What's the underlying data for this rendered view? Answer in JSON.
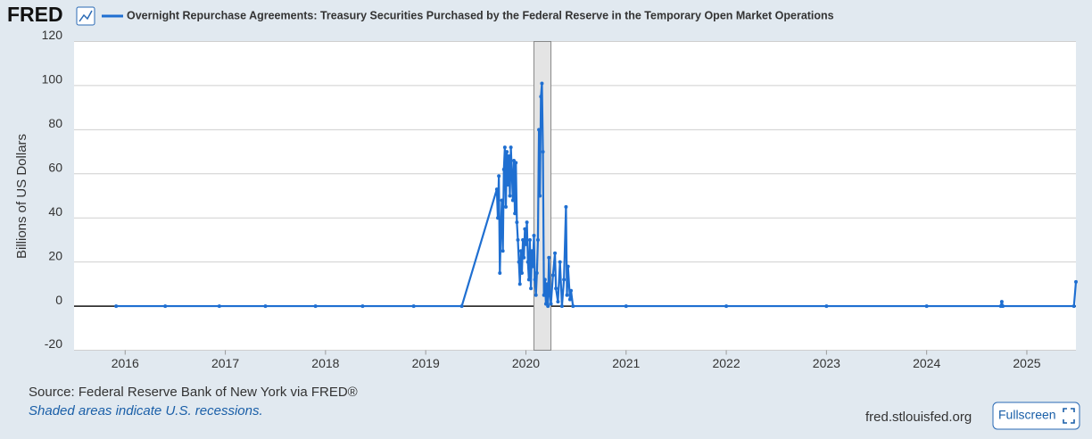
{
  "chart_data": {
    "type": "line",
    "logo": "FRED",
    "ylabel": "Billions of US Dollars",
    "source": "Source: Federal Reserve Bank of New York via FRED®",
    "note": "Shaded areas indicate U.S. recessions.",
    "site": "fred.stlouisfed.org",
    "button": "Fullscreen",
    "x": [
      2015.91,
      2016.4,
      2016.94,
      2017.4,
      2017.9,
      2018.37,
      2018.88,
      2019.36,
      2019.71,
      2019.72,
      2019.73,
      2019.74,
      2019.75,
      2019.76,
      2019.77,
      2019.78,
      2019.79,
      2019.8,
      2019.81,
      2019.82,
      2019.83,
      2019.84,
      2019.85,
      2019.86,
      2019.87,
      2019.88,
      2019.89,
      2019.9,
      2019.91,
      2019.92,
      2019.93,
      2019.94,
      2019.95,
      2019.96,
      2019.97,
      2019.98,
      2019.99,
      2020.0,
      2020.01,
      2020.02,
      2020.03,
      2020.04,
      2020.05,
      2020.06,
      2020.07,
      2020.08,
      2020.09,
      2020.1,
      2020.11,
      2020.12,
      2020.13,
      2020.14,
      2020.15,
      2020.16,
      2020.17,
      2020.18,
      2020.19,
      2020.2,
      2020.21,
      2020.22,
      2020.23,
      2020.24,
      2020.25,
      2020.27,
      2020.29,
      2020.3,
      2020.32,
      2020.34,
      2020.36,
      2020.38,
      2020.4,
      2020.41,
      2020.42,
      2020.44,
      2020.45,
      2020.47,
      2021.0,
      2022.0,
      2023.0,
      2024.0,
      2024.74,
      2024.75,
      2024.76,
      2025.47,
      2025.49
    ],
    "series": [
      {
        "name": "Overnight Repurchase Agreements: Treasury Securities Purchased by the Federal Reserve in the Temporary Open Market Operations",
        "color": "#1f6fd1",
        "values": [
          0,
          0,
          0,
          0,
          0,
          0,
          0,
          0,
          53,
          40,
          59,
          15,
          35,
          48,
          25,
          62,
          72,
          45,
          70,
          55,
          68,
          50,
          72,
          60,
          48,
          66,
          42,
          65,
          38,
          30,
          20,
          10,
          25,
          15,
          30,
          22,
          35,
          28,
          38,
          20,
          12,
          30,
          8,
          25,
          18,
          32,
          12,
          5,
          15,
          30,
          80,
          50,
          95,
          101,
          70,
          5,
          12,
          1,
          10,
          0,
          22,
          5,
          1,
          14,
          24,
          8,
          2,
          20,
          0,
          12,
          45,
          5,
          18,
          3,
          7,
          0,
          0,
          0,
          0,
          0,
          0,
          2,
          0,
          0,
          11
        ]
      }
    ],
    "recessions": [
      {
        "start": 2020.08,
        "end": 2020.25
      }
    ],
    "xlim": [
      2015.49,
      2025.49
    ],
    "xticks": [
      2016,
      2017,
      2018,
      2019,
      2020,
      2021,
      2022,
      2023,
      2024,
      2025
    ],
    "ylim": [
      -20,
      120
    ],
    "yticks": [
      -20,
      0,
      20,
      40,
      60,
      80,
      100,
      120
    ],
    "grid": true
  }
}
